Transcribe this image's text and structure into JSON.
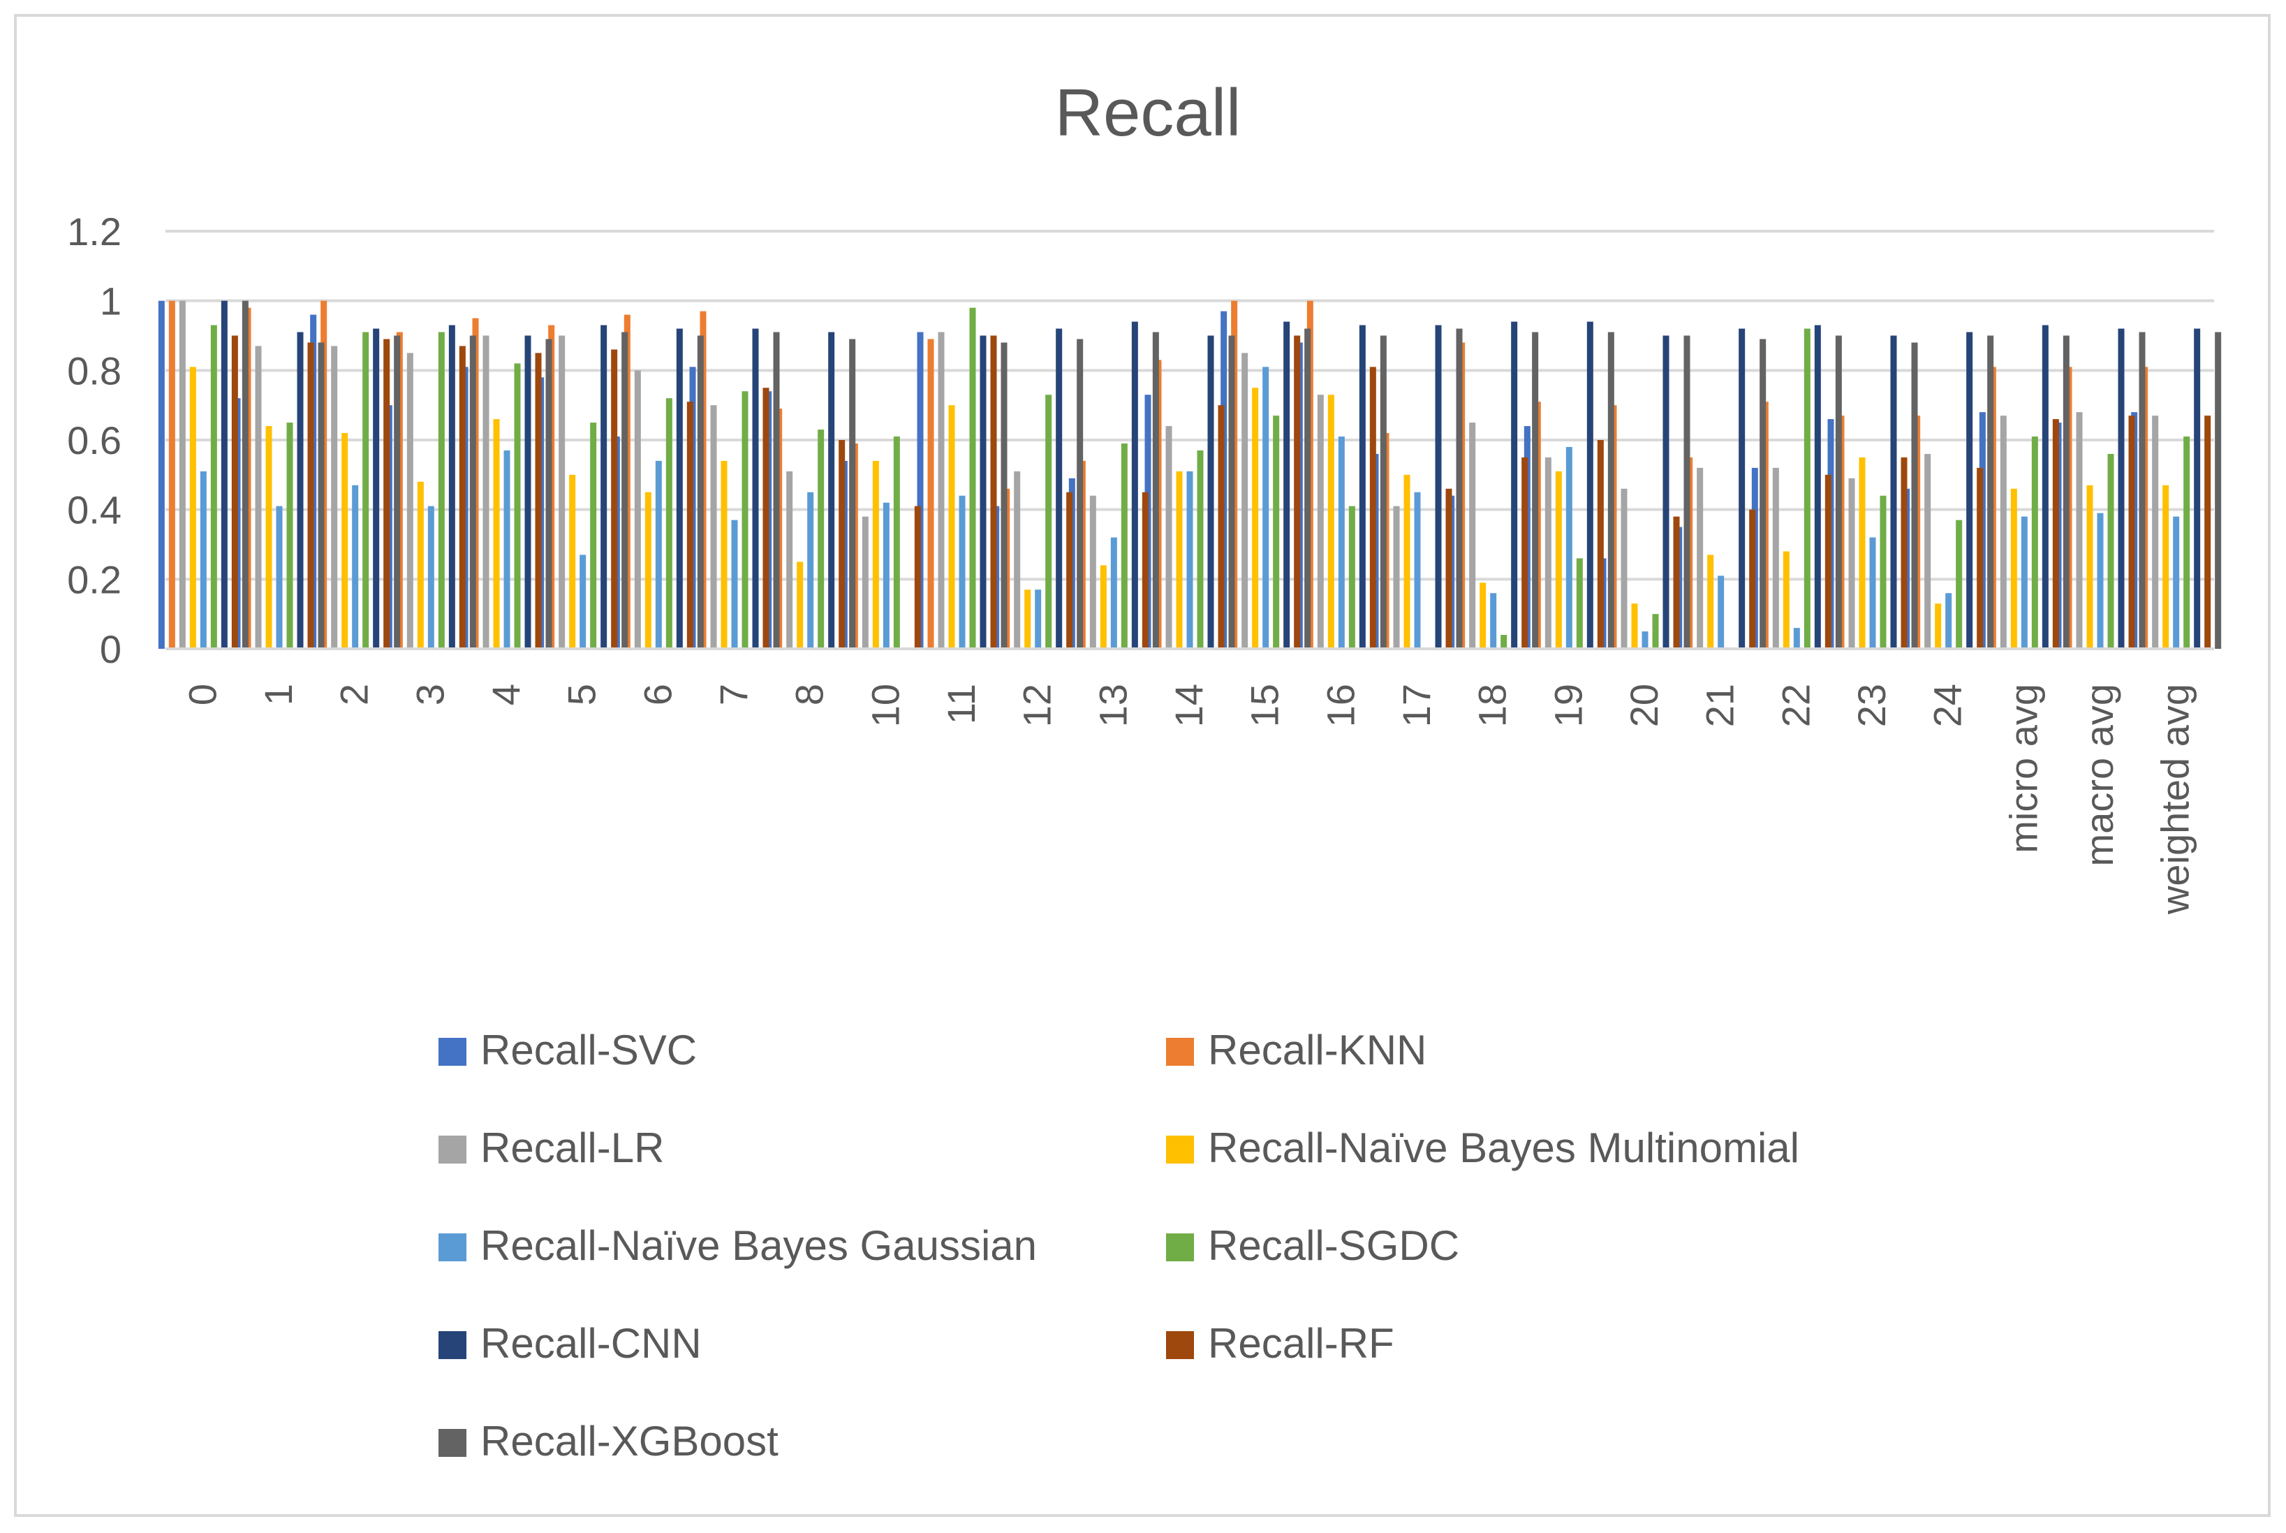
{
  "chart_data": {
    "type": "bar",
    "title": "Recall",
    "xlabel": "",
    "ylabel": "",
    "ylim": [
      0,
      1.2
    ],
    "y_ticks": [
      "0",
      "0.2",
      "0.4",
      "0.6",
      "0.8",
      "1",
      "1.2"
    ],
    "y_tick_values": [
      0,
      0.2,
      0.4,
      0.6,
      0.8,
      1,
      1.2
    ],
    "grid": true,
    "legend_position": "bottom",
    "categories": [
      "0",
      "1",
      "2",
      "3",
      "4",
      "5",
      "6",
      "7",
      "8",
      "10",
      "11",
      "12",
      "13",
      "14",
      "15",
      "16",
      "17",
      "18",
      "19",
      "20",
      "21",
      "22",
      "23",
      "24",
      "micro avg",
      "macro avg",
      "weighted avg"
    ],
    "series": [
      {
        "name": "Recall-SVC",
        "color": "#4472c4",
        "values": [
          1.0,
          0.72,
          0.96,
          0.7,
          0.81,
          0.78,
          0.61,
          0.81,
          0.74,
          0.54,
          0.91,
          0.41,
          0.49,
          0.73,
          0.97,
          0.88,
          0.56,
          0.44,
          0.64,
          0.26,
          0.35,
          0.52,
          0.66,
          0.46,
          0.68,
          0.65,
          0.68
        ]
      },
      {
        "name": "Recall-KNN",
        "color": "#ed7d31",
        "values": [
          1.0,
          0.98,
          1.0,
          0.91,
          0.95,
          0.93,
          0.96,
          0.97,
          0.69,
          0.59,
          0.89,
          0.46,
          0.54,
          0.83,
          1.0,
          1.0,
          0.62,
          0.88,
          0.71,
          0.7,
          0.55,
          0.71,
          0.67,
          0.67,
          0.81,
          0.81,
          0.81
        ]
      },
      {
        "name": "Recall-LR",
        "color": "#a5a5a5",
        "values": [
          1.0,
          0.87,
          0.87,
          0.85,
          0.9,
          0.9,
          0.8,
          0.7,
          0.51,
          0.38,
          0.91,
          0.51,
          0.44,
          0.64,
          0.85,
          0.73,
          0.41,
          0.65,
          0.55,
          0.46,
          0.52,
          0.52,
          0.49,
          0.56,
          0.67,
          0.68,
          0.67
        ]
      },
      {
        "name": "Recall-Naïve Bayes Multinomial",
        "color": "#ffc000",
        "values": [
          0.81,
          0.64,
          0.62,
          0.48,
          0.66,
          0.5,
          0.45,
          0.54,
          0.25,
          0.54,
          0.7,
          0.17,
          0.24,
          0.51,
          0.75,
          0.73,
          0.5,
          0.19,
          0.51,
          0.13,
          0.27,
          0.28,
          0.55,
          0.13,
          0.46,
          0.47,
          0.47
        ]
      },
      {
        "name": "Recall-Naïve Bayes Gaussian",
        "color": "#5b9bd5",
        "values": [
          0.51,
          0.41,
          0.47,
          0.41,
          0.57,
          0.27,
          0.54,
          0.37,
          0.45,
          0.42,
          0.44,
          0.17,
          0.32,
          0.51,
          0.81,
          0.61,
          0.45,
          0.16,
          0.58,
          0.05,
          0.21,
          0.06,
          0.32,
          0.16,
          0.38,
          0.39,
          0.38
        ]
      },
      {
        "name": "Recall-SGDC",
        "color": "#70ad47",
        "values": [
          0.93,
          0.65,
          0.91,
          0.91,
          0.82,
          0.65,
          0.72,
          0.74,
          0.63,
          0.61,
          0.98,
          0.73,
          0.59,
          0.57,
          0.67,
          0.41,
          0.0,
          0.04,
          0.26,
          0.1,
          0.0,
          0.92,
          0.44,
          0.37,
          0.61,
          0.56,
          0.61
        ]
      },
      {
        "name": "Recall-CNN",
        "color": "#264478",
        "values": [
          1.0,
          0.91,
          0.92,
          0.93,
          0.9,
          0.93,
          0.92,
          0.92,
          0.91,
          0.0,
          0.9,
          0.92,
          0.94,
          0.9,
          0.94,
          0.93,
          0.93,
          0.94,
          0.94,
          0.9,
          0.92,
          0.93,
          0.9,
          0.91,
          0.93,
          0.92,
          0.92
        ]
      },
      {
        "name": "Recall-RF",
        "color": "#9e480e",
        "values": [
          0.9,
          0.88,
          0.89,
          0.87,
          0.85,
          0.86,
          0.71,
          0.75,
          0.6,
          0.41,
          0.9,
          0.45,
          0.45,
          0.7,
          0.9,
          0.81,
          0.46,
          0.55,
          0.6,
          0.38,
          0.4,
          0.5,
          0.55,
          0.52,
          0.66,
          0.67,
          0.67
        ]
      },
      {
        "name": "Recall-XGBoost",
        "color": "#636363",
        "values": [
          1.0,
          0.88,
          0.9,
          0.9,
          0.89,
          0.91,
          0.9,
          0.91,
          0.89,
          0.0,
          0.88,
          0.89,
          0.91,
          0.9,
          0.92,
          0.9,
          0.92,
          0.91,
          0.91,
          0.9,
          0.89,
          0.9,
          0.88,
          0.9,
          0.9,
          0.91,
          0.91
        ]
      }
    ]
  },
  "style": {
    "text_color": "#595959",
    "grid_color": "#d9d9d9",
    "axis_color": "#d9d9d9"
  }
}
